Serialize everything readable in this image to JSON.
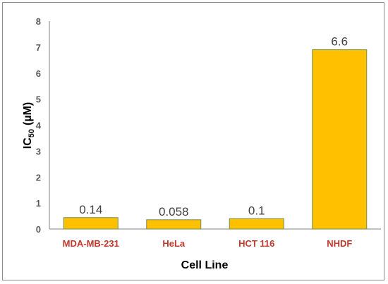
{
  "chart_data": {
    "type": "bar",
    "categories": [
      "MDA-MB-231",
      "HeLa",
      "HCT 116",
      "NHDF"
    ],
    "series": [
      {
        "values": [
          0.14,
          0.058,
          0.1,
          6.6
        ],
        "data_labels": [
          "0.14",
          "0.058",
          "0.1",
          "6.6"
        ]
      }
    ],
    "xlabel": "Cell Line",
    "ylabel_main": "IC",
    "ylabel_sub": "50",
    "ylabel_unit": "(µM)",
    "ylim": [
      0,
      8
    ],
    "yticks": [
      0,
      1,
      2,
      3,
      4,
      5,
      6,
      7,
      8
    ],
    "bar_base": 0.3,
    "grid": false,
    "colors": {
      "bar_fill": "#FFC000",
      "bar_stroke": "#6f8f56",
      "category_label": "#C0392B",
      "axis": "#808080"
    }
  }
}
